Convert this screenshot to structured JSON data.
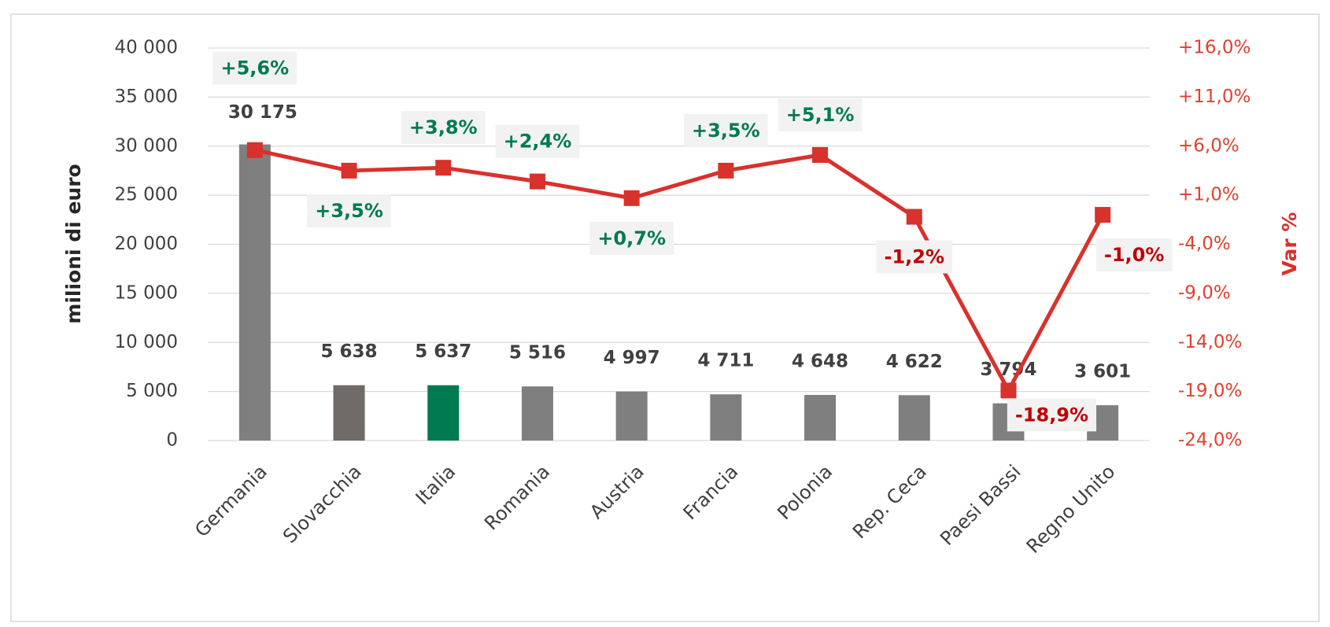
{
  "chart_data": {
    "type": "bar-line",
    "y_label": "milioni di euro",
    "y2_label": "Var %",
    "categories": [
      "Germania",
      "Slovacchia",
      "Italia",
      "Romania",
      "Austria",
      "Francia",
      "Polonia",
      "Rep. Ceca",
      "Paesi Bassi",
      "Regno Unito"
    ],
    "series": [
      {
        "type": "bar",
        "colors": [
          "#7f7f7f",
          "#706a68",
          "#007a50",
          "#7f7f7f",
          "#7f7f7f",
          "#7f7f7f",
          "#7f7f7f",
          "#7f7f7f",
          "#7f7f7f",
          "#7f7f7f"
        ],
        "values": [
          30175,
          5638,
          5637,
          5516,
          4997,
          4711,
          4648,
          4622,
          3794,
          3601
        ],
        "value_labels": [
          "30 175",
          "5 638",
          "5 637",
          "5 516",
          "4 997",
          "4 711",
          "4 648",
          "4 622",
          "3 794",
          "3 601"
        ]
      },
      {
        "type": "line",
        "axis": "y2",
        "color": "#d9312b",
        "values": [
          5.6,
          3.5,
          3.8,
          2.4,
          0.7,
          3.5,
          5.1,
          -1.2,
          -18.9,
          -1.0
        ],
        "value_labels": [
          "+5,6%",
          "+3,5%",
          "+3,8%",
          "+2,4%",
          "+0,7%",
          "+3,5%",
          "+5,1%",
          "-1,2%",
          "-18,9%",
          "-1,0%"
        ]
      }
    ],
    "ylim": [
      0,
      40000
    ],
    "yticks": [
      0,
      {
        "value": 5000,
        "label": "5 000"
      },
      {
        "value": 10000,
        "label": "10 000"
      },
      {
        "value": 15000,
        "label": "15 000"
      },
      {
        "value": 20000,
        "label": "20 000"
      },
      {
        "value": 25000,
        "label": "25 000"
      },
      {
        "value": 30000,
        "label": "30 000"
      },
      {
        "value": 35000,
        "label": "35 000"
      },
      {
        "value": 40000,
        "label": "40 000"
      }
    ],
    "y2lim": [
      -24,
      16
    ],
    "y2ticks": [
      {
        "value": -24,
        "label": "-24,0%"
      },
      {
        "value": -19,
        "label": "-19,0%"
      },
      {
        "value": -14,
        "label": "-14,0%"
      },
      {
        "value": -9,
        "label": "-9,0%"
      },
      {
        "value": -4,
        "label": "-4,0%"
      },
      {
        "value": 1,
        "label": "+1,0%"
      },
      {
        "value": 6,
        "label": "+6,0%"
      },
      {
        "value": 11,
        "label": "+11,0%"
      },
      {
        "value": 16,
        "label": "+16,0%"
      }
    ],
    "grid": true,
    "positive_label_color": "#007a50",
    "negative_label_color": "#c00000"
  }
}
